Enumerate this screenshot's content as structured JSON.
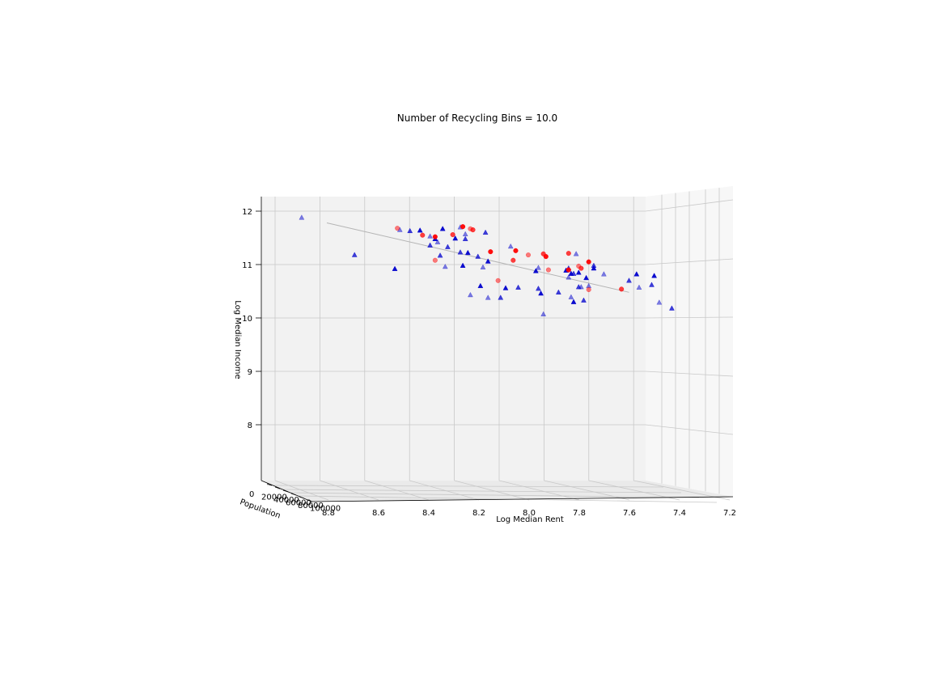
{
  "chart_data": {
    "type": "scatter",
    "projection": "3d",
    "title": "Number of Recycling Bins = 10.0",
    "xlabel": "Log Median Rent",
    "ylabel": "Population",
    "zlabel": "Log Median Income",
    "xlim": [
      7.2,
      8.8
    ],
    "xdirection": "reversed",
    "zlim": [
      7,
      12.2
    ],
    "x_ticks": [
      "8.8",
      "8.6",
      "8.4",
      "8.2",
      "8.0",
      "7.8",
      "7.6",
      "7.4",
      "7.2"
    ],
    "y_ticks": [
      "0",
      "20000",
      "40000",
      "60000",
      "80000",
      "100000"
    ],
    "z_ticks": [
      "12",
      "11",
      "10",
      "9",
      "8"
    ],
    "grid": true,
    "colors": {
      "triangles": "#0000cc",
      "circles": "#ff0000",
      "fit_line": "#b0b0b0"
    },
    "series": [
      {
        "marker": "triangle",
        "color": "#0000cc",
        "points": [
          {
            "x": 8.9,
            "z": 11.88
          },
          {
            "x": 8.69,
            "z": 11.18
          },
          {
            "x": 8.53,
            "z": 10.92
          },
          {
            "x": 8.51,
            "z": 11.65
          },
          {
            "x": 8.47,
            "z": 11.63
          },
          {
            "x": 8.43,
            "z": 11.64
          },
          {
            "x": 8.39,
            "z": 11.53
          },
          {
            "x": 8.39,
            "z": 11.36
          },
          {
            "x": 8.37,
            "z": 11.48
          },
          {
            "x": 8.36,
            "z": 11.42
          },
          {
            "x": 8.35,
            "z": 11.17
          },
          {
            "x": 8.34,
            "z": 11.67
          },
          {
            "x": 8.33,
            "z": 10.96
          },
          {
            "x": 8.32,
            "z": 11.33
          },
          {
            "x": 8.29,
            "z": 11.49
          },
          {
            "x": 8.27,
            "z": 11.7
          },
          {
            "x": 8.27,
            "z": 11.23
          },
          {
            "x": 8.26,
            "z": 10.98
          },
          {
            "x": 8.25,
            "z": 11.57
          },
          {
            "x": 8.25,
            "z": 11.48
          },
          {
            "x": 8.24,
            "z": 11.22
          },
          {
            "x": 8.23,
            "z": 10.43
          },
          {
            "x": 8.2,
            "z": 11.15
          },
          {
            "x": 8.19,
            "z": 10.6
          },
          {
            "x": 8.18,
            "z": 10.95
          },
          {
            "x": 8.17,
            "z": 11.6
          },
          {
            "x": 8.16,
            "z": 11.06
          },
          {
            "x": 8.16,
            "z": 10.38
          },
          {
            "x": 8.11,
            "z": 10.38
          },
          {
            "x": 8.09,
            "z": 10.56
          },
          {
            "x": 8.07,
            "z": 11.34
          },
          {
            "x": 8.04,
            "z": 10.57
          },
          {
            "x": 7.97,
            "z": 10.88
          },
          {
            "x": 7.96,
            "z": 10.94
          },
          {
            "x": 7.96,
            "z": 10.55
          },
          {
            "x": 7.95,
            "z": 10.46
          },
          {
            "x": 7.94,
            "z": 10.07
          },
          {
            "x": 7.88,
            "z": 10.48
          },
          {
            "x": 7.85,
            "z": 10.89
          },
          {
            "x": 7.84,
            "z": 10.76
          },
          {
            "x": 7.84,
            "z": 10.93
          },
          {
            "x": 7.83,
            "z": 10.83
          },
          {
            "x": 7.83,
            "z": 10.39
          },
          {
            "x": 7.82,
            "z": 10.83
          },
          {
            "x": 7.82,
            "z": 10.3
          },
          {
            "x": 7.81,
            "z": 11.2
          },
          {
            "x": 7.8,
            "z": 10.58
          },
          {
            "x": 7.8,
            "z": 10.85
          },
          {
            "x": 7.79,
            "z": 10.58
          },
          {
            "x": 7.78,
            "z": 10.33
          },
          {
            "x": 7.77,
            "z": 10.75
          },
          {
            "x": 7.76,
            "z": 10.6
          },
          {
            "x": 7.74,
            "z": 10.98
          },
          {
            "x": 7.74,
            "z": 10.93
          },
          {
            "x": 7.7,
            "z": 10.82
          },
          {
            "x": 7.6,
            "z": 10.7
          },
          {
            "x": 7.57,
            "z": 10.82
          },
          {
            "x": 7.56,
            "z": 10.57
          },
          {
            "x": 7.51,
            "z": 10.62
          },
          {
            "x": 7.5,
            "z": 10.79
          },
          {
            "x": 7.48,
            "z": 10.29
          },
          {
            "x": 7.43,
            "z": 10.18
          }
        ]
      },
      {
        "marker": "circle",
        "color": "#ff0000",
        "points": [
          {
            "x": 8.52,
            "z": 11.68
          },
          {
            "x": 8.42,
            "z": 11.55
          },
          {
            "x": 8.37,
            "z": 11.52
          },
          {
            "x": 8.37,
            "z": 11.08
          },
          {
            "x": 8.3,
            "z": 11.56
          },
          {
            "x": 8.26,
            "z": 11.71
          },
          {
            "x": 8.23,
            "z": 11.67
          },
          {
            "x": 8.22,
            "z": 11.65
          },
          {
            "x": 8.15,
            "z": 11.24
          },
          {
            "x": 8.12,
            "z": 10.7
          },
          {
            "x": 8.06,
            "z": 11.08
          },
          {
            "x": 8.05,
            "z": 11.26
          },
          {
            "x": 8.0,
            "z": 11.18
          },
          {
            "x": 7.94,
            "z": 11.2
          },
          {
            "x": 7.93,
            "z": 11.15
          },
          {
            "x": 7.92,
            "z": 10.9
          },
          {
            "x": 7.84,
            "z": 11.21
          },
          {
            "x": 7.84,
            "z": 10.9
          },
          {
            "x": 7.8,
            "z": 10.97
          },
          {
            "x": 7.79,
            "z": 10.93
          },
          {
            "x": 7.76,
            "z": 11.05
          },
          {
            "x": 7.76,
            "z": 10.53
          },
          {
            "x": 7.63,
            "z": 10.54
          }
        ]
      }
    ],
    "fit_line": [
      {
        "x": 8.8,
        "z": 11.78
      },
      {
        "x": 7.6,
        "z": 10.48
      }
    ]
  }
}
